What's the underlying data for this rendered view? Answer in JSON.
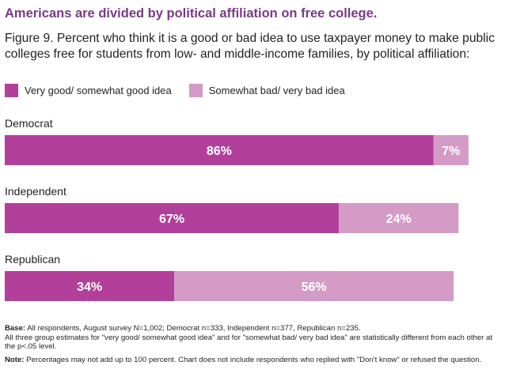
{
  "headline": "Americans are divided by political affiliation on free college.",
  "subtitle": "Figure 9. Percent who think it is a good or bad idea to use taxpayer money to make public colleges free for students from low- and middle-income families, by political affiliation:",
  "legend": [
    {
      "label": "Very good/ somewhat good idea",
      "color": "#b2409a"
    },
    {
      "label": "Somewhat bad/ very bad idea",
      "color": "#d49bc6"
    }
  ],
  "chart_data": {
    "type": "bar",
    "orientation": "horizontal",
    "stacked": true,
    "categories": [
      "Democrat",
      "Independent",
      "Republican"
    ],
    "series": [
      {
        "name": "Very good/ somewhat good idea",
        "values": [
          86,
          67,
          34
        ],
        "labels": [
          "86%",
          "67%",
          "34%"
        ],
        "color": "#b2409a"
      },
      {
        "name": "Somewhat bad/ very bad idea",
        "values": [
          7,
          24,
          56
        ],
        "labels": [
          "7%",
          "24%",
          "56%"
        ],
        "color": "#d49bc6"
      }
    ],
    "xlim": [
      0,
      100
    ],
    "grid": false,
    "legend_position": "top-left"
  },
  "notes": {
    "base_label": "Base:",
    "base_text": " All respondents, August survey N=1,002; Democrat n=333, Independent n=377, Republican n=235.",
    "line2": "All three group estimates for \"very good/ somewhat good idea\" and for \"somewhat bad/ very bad idea\" are statistically different from each other at the p<.05 level.",
    "note_label": "Note:",
    "note_text": " Percentages may not add up to 100 percent. Chart does not include respondents who replied with \"Don't know\" or refused the question."
  }
}
